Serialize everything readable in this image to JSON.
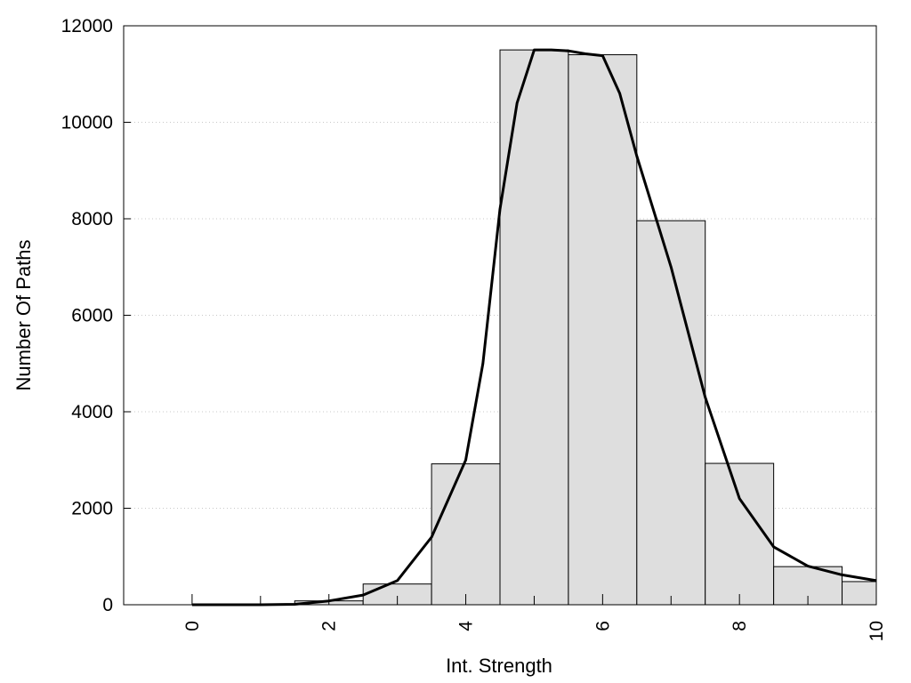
{
  "chart_data": {
    "type": "bar",
    "subtype": "histogram-with-density-curve",
    "xlabel": "Int. Strength",
    "ylabel": "Number Of Paths",
    "xlim": [
      -1,
      10
    ],
    "ylim": [
      0,
      12000
    ],
    "xticks": [
      0,
      2,
      4,
      6,
      8,
      10
    ],
    "yticks": [
      0,
      2000,
      4000,
      6000,
      8000,
      10000,
      12000
    ],
    "grid": "horizontal-dotted",
    "bar_color": "#dedede",
    "bar_edge_color": "#000000",
    "curve_color": "#000000",
    "bins": [
      {
        "x": 0,
        "value": 0
      },
      {
        "x": 1,
        "value": 0
      },
      {
        "x": 2,
        "value": 80
      },
      {
        "x": 3,
        "value": 430
      },
      {
        "x": 4,
        "value": 2920
      },
      {
        "x": 5,
        "value": 11500
      },
      {
        "x": 6,
        "value": 11400
      },
      {
        "x": 7,
        "value": 7960
      },
      {
        "x": 8,
        "value": 2930
      },
      {
        "x": 9,
        "value": 790
      },
      {
        "x": 10,
        "value": 480
      }
    ],
    "curve": {
      "x": [
        0,
        0.5,
        1,
        1.5,
        2,
        2.5,
        3,
        3.5,
        4,
        4.25,
        4.5,
        4.75,
        5,
        5.25,
        5.5,
        5.75,
        6,
        6.25,
        6.5,
        7,
        7.5,
        8,
        8.5,
        9,
        9.5,
        10
      ],
      "y": [
        0,
        0,
        0,
        10,
        80,
        200,
        500,
        1400,
        3000,
        5000,
        8200,
        10400,
        11500,
        11500,
        11480,
        11420,
        11380,
        10600,
        9300,
        7000,
        4300,
        2200,
        1200,
        800,
        620,
        500
      ]
    }
  }
}
